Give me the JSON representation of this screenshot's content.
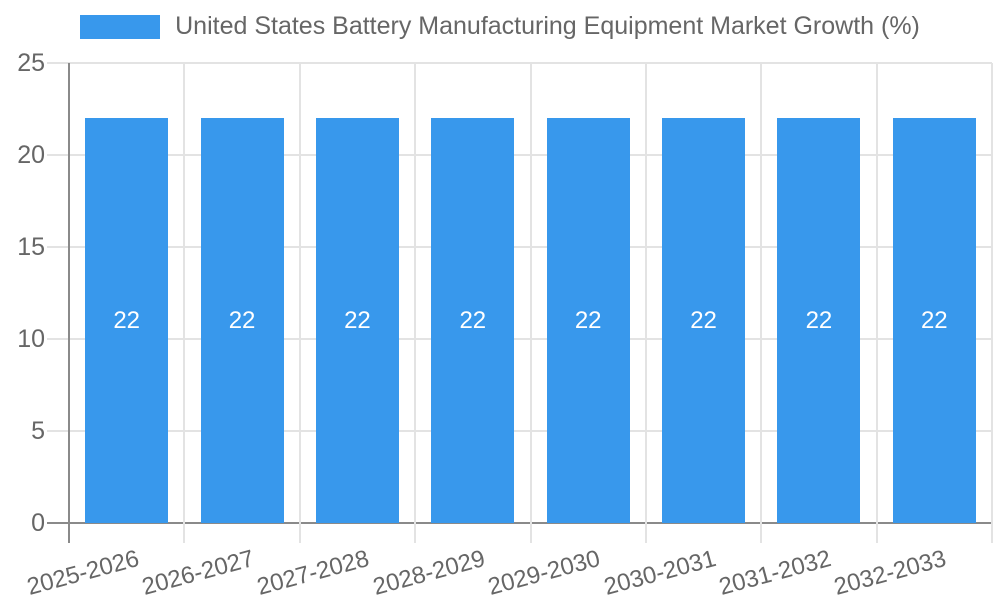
{
  "chart_data": {
    "type": "bar",
    "title": "United States Battery Manufacturing Equipment Market Growth (%)",
    "categories": [
      "2025-2026",
      "2026-2027",
      "2027-2028",
      "2028-2029",
      "2029-2030",
      "2030-2031",
      "2031-2032",
      "2032-2033"
    ],
    "series": [
      {
        "name": "United States Battery Manufacturing Equipment Market Growth (%)",
        "values": [
          22,
          22,
          22,
          22,
          22,
          22,
          22,
          22
        ]
      }
    ],
    "value_labels": [
      "22",
      "22",
      "22",
      "22",
      "22",
      "22",
      "22",
      "22"
    ],
    "xlabel": "",
    "ylabel": "",
    "ylim": [
      0,
      25
    ],
    "yticks": [
      0,
      5,
      10,
      15,
      20,
      25
    ],
    "ytick_labels": [
      "0",
      "5",
      "10",
      "15",
      "20",
      "25"
    ],
    "grid": true,
    "legend_position": "top-center"
  },
  "colors": {
    "bar": "#3898EC",
    "grid_light": "#e3e3e3",
    "axis_dark": "#8a8a8a",
    "tick_label": "#666666",
    "title_text": "#666666",
    "bar_value_text": "#ffffff",
    "background": "#ffffff"
  }
}
